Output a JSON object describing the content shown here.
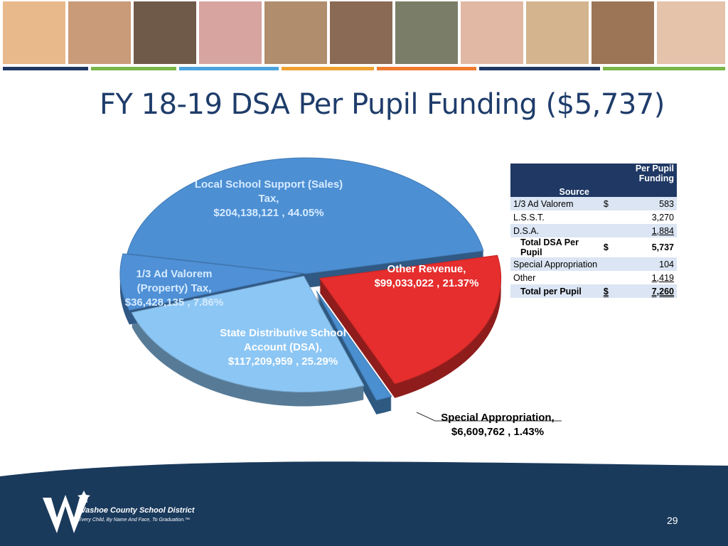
{
  "chart_data": {
    "type": "pie",
    "title": "FY 18-19 DSA Per Pupil Funding ($5,737)",
    "categories": [
      "Local School Support (Sales) Tax,",
      "Other Revenue,",
      "Special Appropriation,",
      "State Distributive School Account (DSA),",
      "1/3 Ad Valorem (Property) Tax,"
    ],
    "amount_labels": [
      "$204,138,121 ,",
      "$99,033,022 ,",
      "$6,609,762 ,",
      "$117,209,959 ,",
      "$36,428,135 ,"
    ],
    "values": [
      44.05,
      21.37,
      1.43,
      25.29,
      7.86
    ],
    "value_labels": [
      "44.05%",
      "21.37%",
      "1.43%",
      "25.29%",
      "7.86%"
    ],
    "colors": [
      "#4d8fd3",
      "#e52e2d",
      "#4a8fd0",
      "#8cc6f4",
      "#4f90d6"
    ]
  },
  "table": {
    "columns": [
      "Source",
      "Per Pupil Funding"
    ],
    "rows": [
      {
        "source": "1/3 Ad Valorem",
        "currency": "$",
        "amount": "583"
      },
      {
        "source": "L.S.S.T.",
        "amount": "3,270"
      },
      {
        "source": "D.S.A.",
        "amount": "1,884"
      },
      {
        "source": "Total DSA Per Pupil",
        "currency": "$",
        "amount": "5,737"
      },
      {
        "source": "Special Appropriation",
        "amount": "104"
      },
      {
        "source": "Other",
        "amount": "1,419"
      },
      {
        "source": "Total per Pupil",
        "currency": "$",
        "amount": "7,260"
      }
    ]
  },
  "footer": {
    "organization": "Washoe County School District",
    "tagline": "Every Child, By Name And Face, To Graduation.™",
    "page_number": "29"
  }
}
